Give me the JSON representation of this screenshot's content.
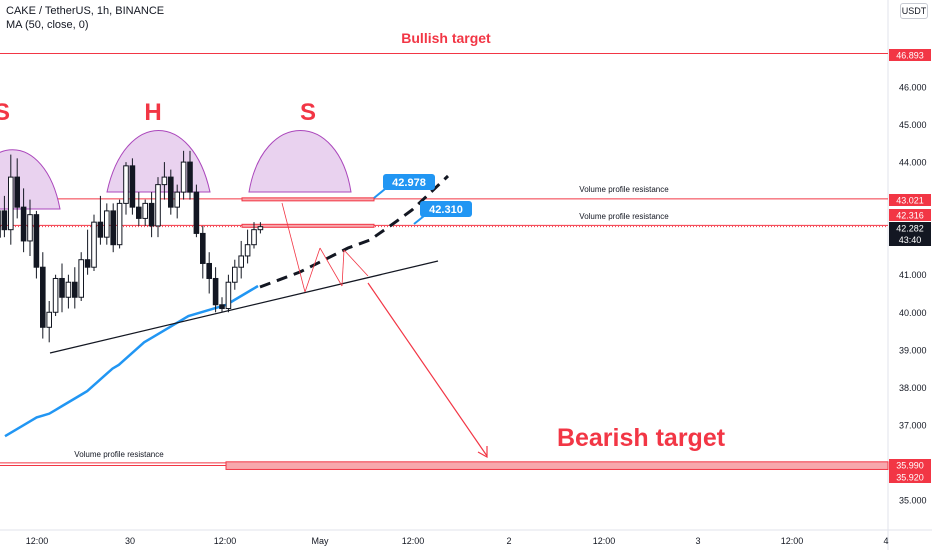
{
  "header": {
    "symbol_line": "CAKE / TetherUS, 1h, BINANCE",
    "indicator_line": "MA (50, close, 0)",
    "currency": "USDT"
  },
  "chart_data": {
    "type": "candlestick",
    "symbol": "CAKE / TetherUS",
    "interval": "1h",
    "exchange": "BINANCE",
    "ylim": [
      34.3,
      47.4
    ],
    "y_ticks": [
      "35.000",
      "37.000",
      "38.000",
      "39.000",
      "40.000",
      "41.000",
      "44.000",
      "45.000",
      "46.000"
    ],
    "x_ticks": [
      "12:00",
      "30",
      "12:00",
      "May",
      "12:00",
      "2",
      "12:00",
      "3",
      "12:00",
      "4"
    ],
    "price_tags": [
      {
        "label": "46.893",
        "value": 46.893,
        "color": "#f23645"
      },
      {
        "label": "43.021",
        "value": 43.021,
        "color": "#f23645"
      },
      {
        "label": "42.316",
        "value": 42.316,
        "color": "#f23645"
      },
      {
        "label": "42.282",
        "sub": "43:40",
        "value": 42.282,
        "color": "#131722"
      },
      {
        "label": "35.990",
        "value": 35.99,
        "color": "#f23645"
      },
      {
        "label": "35.920",
        "value": 35.92,
        "color": "#f23645"
      }
    ],
    "callouts": [
      {
        "label": "42.978",
        "value": 42.978
      },
      {
        "label": "42.310",
        "value": 42.31
      }
    ],
    "annotations": {
      "bullish_target": "Bullish target",
      "bearish_target": "Bearish target",
      "volume_profile": "Volume profile resistance",
      "head_shoulders": [
        "S",
        "H",
        "S"
      ]
    },
    "levels": {
      "bullish": 46.893,
      "resistance_upper": 43.021,
      "resistance_lower": 42.316,
      "bearish_high": 35.99,
      "bearish_low": 35.92
    },
    "candles": [
      {
        "o": 42.0,
        "h": 43.0,
        "l": 41.5,
        "c": 42.7
      },
      {
        "o": 42.7,
        "h": 43.1,
        "l": 42.0,
        "c": 42.2
      },
      {
        "o": 42.2,
        "h": 44.2,
        "l": 41.8,
        "c": 43.6
      },
      {
        "o": 43.6,
        "h": 44.1,
        "l": 42.5,
        "c": 42.8
      },
      {
        "o": 42.8,
        "h": 43.3,
        "l": 41.6,
        "c": 41.9
      },
      {
        "o": 41.9,
        "h": 43.0,
        "l": 41.5,
        "c": 42.6
      },
      {
        "o": 42.6,
        "h": 42.7,
        "l": 40.9,
        "c": 41.2
      },
      {
        "o": 41.2,
        "h": 41.6,
        "l": 39.3,
        "c": 39.6
      },
      {
        "o": 39.6,
        "h": 40.3,
        "l": 39.2,
        "c": 40.0
      },
      {
        "o": 40.0,
        "h": 41.0,
        "l": 39.9,
        "c": 40.9
      },
      {
        "o": 40.9,
        "h": 41.3,
        "l": 40.0,
        "c": 40.4
      },
      {
        "o": 40.4,
        "h": 41.0,
        "l": 40.1,
        "c": 40.8
      },
      {
        "o": 40.8,
        "h": 41.2,
        "l": 40.1,
        "c": 40.4
      },
      {
        "o": 40.4,
        "h": 41.6,
        "l": 40.3,
        "c": 41.4
      },
      {
        "o": 41.4,
        "h": 42.2,
        "l": 41.0,
        "c": 41.2
      },
      {
        "o": 41.2,
        "h": 42.6,
        "l": 41.1,
        "c": 42.4
      },
      {
        "o": 42.4,
        "h": 43.1,
        "l": 41.8,
        "c": 42.0
      },
      {
        "o": 42.0,
        "h": 42.9,
        "l": 41.8,
        "c": 42.7
      },
      {
        "o": 42.7,
        "h": 42.9,
        "l": 41.6,
        "c": 41.8
      },
      {
        "o": 41.8,
        "h": 43.0,
        "l": 41.7,
        "c": 42.9
      },
      {
        "o": 42.9,
        "h": 44.0,
        "l": 42.6,
        "c": 43.9
      },
      {
        "o": 43.9,
        "h": 44.1,
        "l": 42.6,
        "c": 42.8
      },
      {
        "o": 42.8,
        "h": 43.2,
        "l": 42.3,
        "c": 42.5
      },
      {
        "o": 42.5,
        "h": 43.0,
        "l": 42.3,
        "c": 42.9
      },
      {
        "o": 42.9,
        "h": 43.2,
        "l": 42.0,
        "c": 42.3
      },
      {
        "o": 42.3,
        "h": 43.6,
        "l": 42.0,
        "c": 43.4
      },
      {
        "o": 43.4,
        "h": 44.0,
        "l": 43.0,
        "c": 43.6
      },
      {
        "o": 43.6,
        "h": 43.8,
        "l": 42.6,
        "c": 42.8
      },
      {
        "o": 42.8,
        "h": 43.4,
        "l": 42.5,
        "c": 43.2
      },
      {
        "o": 43.2,
        "h": 44.3,
        "l": 43.0,
        "c": 44.0
      },
      {
        "o": 44.0,
        "h": 44.3,
        "l": 43.0,
        "c": 43.2
      },
      {
        "o": 43.2,
        "h": 43.4,
        "l": 42.0,
        "c": 42.1
      },
      {
        "o": 42.1,
        "h": 42.3,
        "l": 40.9,
        "c": 41.3
      },
      {
        "o": 41.3,
        "h": 41.6,
        "l": 40.5,
        "c": 40.9
      },
      {
        "o": 40.9,
        "h": 41.2,
        "l": 40.0,
        "c": 40.2
      },
      {
        "o": 40.2,
        "h": 40.4,
        "l": 40.0,
        "c": 40.1
      },
      {
        "o": 40.1,
        "h": 41.0,
        "l": 40.0,
        "c": 40.8
      },
      {
        "o": 40.8,
        "h": 41.4,
        "l": 40.6,
        "c": 41.2
      },
      {
        "o": 41.2,
        "h": 41.9,
        "l": 40.9,
        "c": 41.5
      },
      {
        "o": 41.5,
        "h": 42.2,
        "l": 41.3,
        "c": 41.8
      },
      {
        "o": 41.8,
        "h": 42.4,
        "l": 41.7,
        "c": 42.2
      },
      {
        "o": 42.2,
        "h": 42.4,
        "l": 42.1,
        "c": 42.28
      }
    ],
    "ma": [
      36.7,
      36.8,
      36.9,
      37.0,
      37.1,
      37.2,
      37.25,
      37.3,
      37.4,
      37.5,
      37.6,
      37.7,
      37.8,
      37.9,
      38.05,
      38.2,
      38.35,
      38.5,
      38.6,
      38.75,
      38.9,
      39.05,
      39.2,
      39.3,
      39.4,
      39.5,
      39.6,
      39.7,
      39.8,
      39.9,
      39.95,
      40.0,
      40.05,
      40.1,
      40.15,
      40.2,
      40.3,
      40.4,
      40.5,
      40.6,
      40.7
    ]
  }
}
